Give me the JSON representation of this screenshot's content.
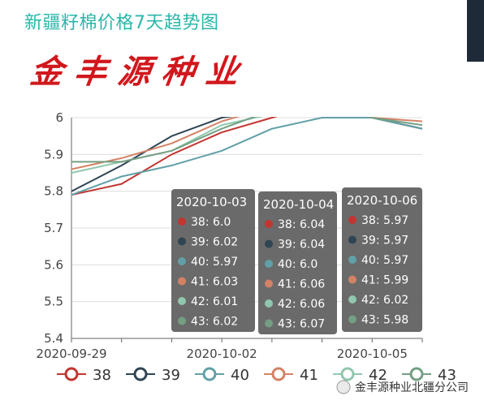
{
  "title": "新疆籽棉价格7天趋势图",
  "brand": "金丰源种业",
  "watermark": "金丰源种业北疆分公司",
  "colors": {
    "38": "#c23531",
    "39": "#2f4554",
    "40": "#61a0a8",
    "41": "#d48265",
    "42": "#91c7ae",
    "43": "#749f83",
    "tooltip_bg": "#5f5f5f",
    "grid": "#dddddd",
    "title": "#2ab7a9",
    "brand": "#d1181d"
  },
  "chart_data": {
    "type": "line",
    "x": [
      "2020-09-29",
      "2020-09-30",
      "2020-10-01",
      "2020-10-02",
      "2020-10-03",
      "2020-10-04",
      "2020-10-05",
      "2020-10-06"
    ],
    "x_tick_labels": [
      "2020-09-29",
      "2020-10-02",
      "2020-10-05"
    ],
    "y_tick_labels": [
      "5.4",
      "5.5",
      "5.6",
      "5.7",
      "5.8",
      "5.9",
      "6"
    ],
    "ylim": [
      5.4,
      6.0
    ],
    "grid": true,
    "legend_position": "bottom",
    "series": [
      {
        "name": "38",
        "values": [
          5.79,
          5.82,
          5.9,
          5.96,
          6.0,
          6.04,
          6.0,
          5.97
        ]
      },
      {
        "name": "39",
        "values": [
          5.8,
          5.87,
          5.95,
          6.0,
          6.02,
          6.04,
          6.0,
          5.97
        ]
      },
      {
        "name": "40",
        "values": [
          5.79,
          5.84,
          5.87,
          5.91,
          5.97,
          6.0,
          6.0,
          5.97
        ]
      },
      {
        "name": "41",
        "values": [
          5.86,
          5.89,
          5.93,
          5.99,
          6.03,
          6.06,
          6.0,
          5.99
        ]
      },
      {
        "name": "42",
        "values": [
          5.85,
          5.88,
          5.91,
          5.98,
          6.01,
          6.06,
          6.03,
          6.02
        ]
      },
      {
        "name": "43",
        "values": [
          5.88,
          5.88,
          5.91,
          5.97,
          6.02,
          6.07,
          6.0,
          5.98
        ]
      }
    ],
    "tooltips": [
      {
        "date": "2020-10-03",
        "rows": [
          "38: 6.0",
          "39: 6.02",
          "40: 5.97",
          "41: 6.03",
          "42: 6.01",
          "43: 6.02"
        ]
      },
      {
        "date": "2020-10-04",
        "rows": [
          "38: 6.04",
          "39: 6.04",
          "40: 6.0",
          "41: 6.06",
          "42: 6.06",
          "43: 6.07"
        ]
      },
      {
        "date": "2020-10-06",
        "rows": [
          "38: 5.97",
          "39: 5.97",
          "40: 5.97",
          "41: 5.99",
          "42: 6.02",
          "43: 5.98"
        ]
      }
    ]
  }
}
